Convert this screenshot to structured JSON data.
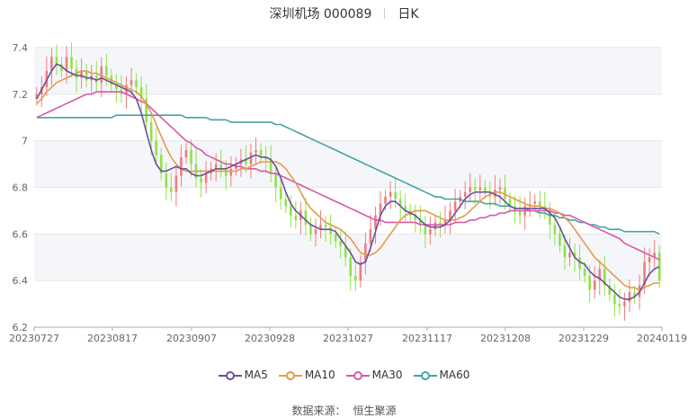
{
  "header": {
    "stock_name": "深圳机场 000089",
    "period": "日K"
  },
  "source": {
    "label": "数据来源：",
    "value": "恒生聚源"
  },
  "colors": {
    "up": "#f07c82",
    "down": "#8fe24a",
    "ma5": "#6b4fa0",
    "ma10": "#e59a4b",
    "ma30": "#d858a8",
    "ma60": "#46a3a3",
    "band": "#f5f6fa",
    "grid": "#e6e6e6"
  },
  "chart_data": {
    "type": "candlestick",
    "ylim": [
      6.2,
      7.4
    ],
    "y_ticks": [
      "6.2",
      "6.4",
      "6.6",
      "6.8",
      "7",
      "7.2",
      "7.4"
    ],
    "x_ticks": [
      "20230727",
      "20230817",
      "20230907",
      "20230928",
      "20231027",
      "20231117",
      "20231208",
      "20231229",
      "20240119"
    ],
    "x_range": [
      "20230727",
      "20240119"
    ],
    "legend": [
      {
        "name": "MA5",
        "color_key": "ma5"
      },
      {
        "name": "MA10",
        "color_key": "ma10"
      },
      {
        "name": "MA30",
        "color_key": "ma30"
      },
      {
        "name": "MA60",
        "color_key": "ma60"
      }
    ],
    "closes": [
      7.2,
      7.23,
      7.3,
      7.36,
      7.33,
      7.3,
      7.36,
      7.31,
      7.27,
      7.3,
      7.26,
      7.28,
      7.25,
      7.32,
      7.28,
      7.24,
      7.22,
      7.2,
      7.24,
      7.26,
      7.23,
      7.18,
      7.08,
      7.0,
      6.94,
      6.86,
      6.8,
      6.78,
      6.85,
      6.93,
      6.96,
      6.9,
      6.84,
      6.82,
      6.86,
      6.88,
      6.9,
      6.88,
      6.85,
      6.88,
      6.9,
      6.92,
      6.9,
      6.95,
      6.96,
      6.93,
      6.92,
      6.86,
      6.8,
      6.75,
      6.72,
      6.68,
      6.66,
      6.7,
      6.64,
      6.6,
      6.62,
      6.64,
      6.63,
      6.6,
      6.57,
      6.55,
      6.5,
      6.42,
      6.4,
      6.48,
      6.56,
      6.62,
      6.68,
      6.73,
      6.76,
      6.78,
      6.75,
      6.72,
      6.7,
      6.68,
      6.66,
      6.64,
      6.6,
      6.62,
      6.65,
      6.64,
      6.66,
      6.7,
      6.74,
      6.76,
      6.78,
      6.8,
      6.79,
      6.8,
      6.78,
      6.76,
      6.79,
      6.8,
      6.75,
      6.72,
      6.7,
      6.68,
      6.72,
      6.73,
      6.74,
      6.72,
      6.7,
      6.64,
      6.6,
      6.55,
      6.5,
      6.52,
      6.5,
      6.45,
      6.42,
      6.36,
      6.4,
      6.45,
      6.38,
      6.34,
      6.3,
      6.29,
      6.31,
      6.35,
      6.33,
      6.38,
      6.48,
      6.5,
      6.52,
      6.4
    ],
    "ma5": [
      7.18,
      7.22,
      7.26,
      7.3,
      7.33,
      7.32,
      7.3,
      7.29,
      7.28,
      7.28,
      7.27,
      7.27,
      7.26,
      7.27,
      7.26,
      7.25,
      7.24,
      7.23,
      7.22,
      7.21,
      7.18,
      7.12,
      7.04,
      6.96,
      6.9,
      6.87,
      6.87,
      6.88,
      6.89,
      6.88,
      6.88,
      6.86,
      6.85,
      6.85,
      6.86,
      6.87,
      6.88,
      6.88,
      6.88,
      6.89,
      6.9,
      6.91,
      6.92,
      6.93,
      6.94,
      6.93,
      6.93,
      6.92,
      6.89,
      6.84,
      6.78,
      6.73,
      6.7,
      6.68,
      6.66,
      6.64,
      6.63,
      6.62,
      6.62,
      6.62,
      6.61,
      6.58,
      6.55,
      6.52,
      6.48,
      6.47,
      6.48,
      6.54,
      6.61,
      6.68,
      6.72,
      6.74,
      6.74,
      6.72,
      6.7,
      6.69,
      6.68,
      6.66,
      6.64,
      6.63,
      6.63,
      6.63,
      6.64,
      6.66,
      6.69,
      6.72,
      6.75,
      6.77,
      6.78,
      6.78,
      6.78,
      6.78,
      6.77,
      6.76,
      6.74,
      6.72,
      6.71,
      6.71,
      6.71,
      6.71,
      6.71,
      6.71,
      6.71,
      6.69,
      6.67,
      6.63,
      6.58,
      6.54,
      6.5,
      6.48,
      6.47,
      6.44,
      6.42,
      6.41,
      6.39,
      6.37,
      6.35,
      6.33,
      6.32,
      6.32,
      6.33,
      6.35,
      6.39,
      6.43,
      6.45,
      6.46
    ],
    "ma10": [
      7.16,
      7.18,
      7.21,
      7.23,
      7.25,
      7.26,
      7.27,
      7.28,
      7.29,
      7.3,
      7.3,
      7.29,
      7.29,
      7.28,
      7.27,
      7.26,
      7.25,
      7.24,
      7.23,
      7.22,
      7.21,
      7.19,
      7.16,
      7.12,
      7.07,
      7.02,
      6.97,
      6.93,
      6.9,
      6.88,
      6.87,
      6.87,
      6.87,
      6.87,
      6.87,
      6.87,
      6.87,
      6.87,
      6.87,
      6.87,
      6.87,
      6.88,
      6.88,
      6.89,
      6.9,
      6.91,
      6.91,
      6.91,
      6.91,
      6.9,
      6.88,
      6.85,
      6.82,
      6.78,
      6.74,
      6.71,
      6.69,
      6.67,
      6.65,
      6.64,
      6.63,
      6.62,
      6.6,
      6.58,
      6.55,
      6.52,
      6.51,
      6.51,
      6.52,
      6.54,
      6.57,
      6.6,
      6.63,
      6.66,
      6.68,
      6.69,
      6.7,
      6.7,
      6.7,
      6.69,
      6.68,
      6.67,
      6.66,
      6.66,
      6.66,
      6.67,
      6.68,
      6.7,
      6.72,
      6.74,
      6.76,
      6.77,
      6.78,
      6.78,
      6.77,
      6.76,
      6.75,
      6.74,
      6.73,
      6.72,
      6.72,
      6.72,
      6.71,
      6.71,
      6.7,
      6.69,
      6.67,
      6.65,
      6.62,
      6.59,
      6.56,
      6.53,
      6.5,
      6.48,
      6.46,
      6.44,
      6.42,
      6.4,
      6.38,
      6.37,
      6.37,
      6.36,
      6.37,
      6.38,
      6.39,
      6.39
    ],
    "ma30": [
      7.1,
      7.11,
      7.12,
      7.13,
      7.14,
      7.15,
      7.16,
      7.17,
      7.18,
      7.19,
      7.2,
      7.2,
      7.21,
      7.21,
      7.21,
      7.21,
      7.21,
      7.21,
      7.2,
      7.19,
      7.18,
      7.17,
      7.16,
      7.14,
      7.12,
      7.1,
      7.08,
      7.06,
      7.04,
      7.02,
      7.0,
      6.99,
      6.97,
      6.96,
      6.94,
      6.93,
      6.92,
      6.91,
      6.9,
      6.9,
      6.89,
      6.89,
      6.88,
      6.88,
      6.88,
      6.87,
      6.87,
      6.86,
      6.86,
      6.85,
      6.84,
      6.83,
      6.82,
      6.81,
      6.8,
      6.79,
      6.78,
      6.77,
      6.76,
      6.75,
      6.74,
      6.73,
      6.72,
      6.71,
      6.7,
      6.69,
      6.68,
      6.67,
      6.66,
      6.66,
      6.65,
      6.65,
      6.65,
      6.65,
      6.65,
      6.65,
      6.65,
      6.64,
      6.64,
      6.64,
      6.64,
      6.64,
      6.64,
      6.64,
      6.65,
      6.65,
      6.65,
      6.66,
      6.66,
      6.67,
      6.67,
      6.68,
      6.68,
      6.69,
      6.69,
      6.7,
      6.7,
      6.7,
      6.7,
      6.7,
      6.7,
      6.7,
      6.7,
      6.7,
      6.69,
      6.69,
      6.68,
      6.68,
      6.67,
      6.66,
      6.65,
      6.64,
      6.63,
      6.62,
      6.61,
      6.6,
      6.59,
      6.58,
      6.56,
      6.55,
      6.54,
      6.53,
      6.52,
      6.51,
      6.5,
      6.49
    ],
    "ma60": [
      7.1,
      7.1,
      7.1,
      7.1,
      7.1,
      7.1,
      7.1,
      7.1,
      7.1,
      7.1,
      7.1,
      7.1,
      7.1,
      7.1,
      7.1,
      7.1,
      7.11,
      7.11,
      7.11,
      7.11,
      7.11,
      7.11,
      7.11,
      7.11,
      7.11,
      7.11,
      7.11,
      7.11,
      7.11,
      7.11,
      7.1,
      7.1,
      7.1,
      7.1,
      7.1,
      7.09,
      7.09,
      7.09,
      7.09,
      7.08,
      7.08,
      7.08,
      7.08,
      7.08,
      7.08,
      7.08,
      7.08,
      7.08,
      7.07,
      7.07,
      7.06,
      7.05,
      7.04,
      7.03,
      7.02,
      7.01,
      7.0,
      6.99,
      6.98,
      6.97,
      6.96,
      6.95,
      6.94,
      6.93,
      6.92,
      6.91,
      6.9,
      6.89,
      6.88,
      6.87,
      6.86,
      6.85,
      6.84,
      6.83,
      6.82,
      6.81,
      6.8,
      6.79,
      6.78,
      6.77,
      6.76,
      6.76,
      6.75,
      6.75,
      6.75,
      6.75,
      6.74,
      6.74,
      6.74,
      6.74,
      6.73,
      6.73,
      6.73,
      6.72,
      6.72,
      6.72,
      6.71,
      6.71,
      6.71,
      6.7,
      6.7,
      6.69,
      6.69,
      6.68,
      6.68,
      6.67,
      6.67,
      6.66,
      6.66,
      6.65,
      6.65,
      6.64,
      6.64,
      6.63,
      6.63,
      6.62,
      6.62,
      6.62,
      6.61,
      6.61,
      6.61,
      6.61,
      6.61,
      6.61,
      6.61,
      6.6
    ]
  }
}
